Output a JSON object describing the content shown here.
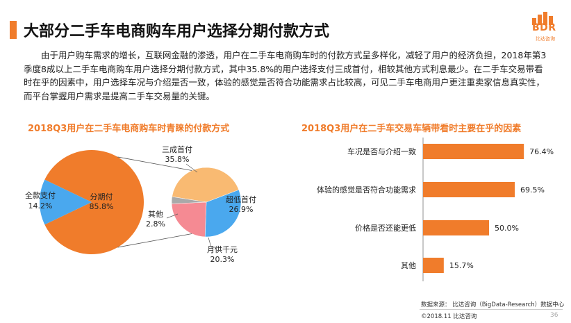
{
  "header": {
    "title": "大部分二手车电商购车用户选择分期付款方式",
    "logo_text": "BDR",
    "logo_sub": "比达咨询"
  },
  "paragraph": "由于用户购车需求的增长，互联网金融的渗透，用户在二手车电商购车时的付款方式呈多样化，减轻了用户的经济负担，2018年第3季度8成以上二手车电商购车用户选择分期付款方式，其中35.8%的用户选择支付三成首付，相较其他方式利息最少。在二手车交易带看时在乎的因素中，用户选择车况与介绍是否一致，体验的感觉是否符合功能需求占比较高，可见二手车电商用户更注重卖家信息真实性，而平台掌握用户需求是提高二手车交易量的关键。",
  "footer": {
    "source": "数据来源： 比达咨询（BigData-Research）数据中心",
    "copyright": "©2018.11  比达咨询",
    "page": "36"
  },
  "colors": {
    "accent": "#f07c2b",
    "blue": "#4aa8ee",
    "pink": "#f58a93",
    "gray": "#a9a9a9",
    "peach": "#f9ba72"
  },
  "chart_data": [
    {
      "type": "pie",
      "title": "2018Q3用户在二手车电商购车时青睐的付款方式",
      "main": {
        "slices": [
          {
            "label": "分期付",
            "value": 85.8,
            "display": "85.8%",
            "color": "#f07c2b"
          },
          {
            "label": "全款支付",
            "value": 14.2,
            "display": "14.2%",
            "color": "#4aa8ee"
          }
        ]
      },
      "breakdown": {
        "of": "分期付",
        "slices": [
          {
            "label": "三成首付",
            "value": 35.8,
            "display": "35.8%",
            "color": "#f9ba72"
          },
          {
            "label": "超低首付",
            "value": 26.9,
            "display": "26.9%",
            "color": "#4aa8ee"
          },
          {
            "label": "月供千元",
            "value": 20.3,
            "display": "20.3%",
            "color": "#f58a93"
          },
          {
            "label": "其他",
            "value": 2.8,
            "display": "2.8%",
            "color": "#a9a9a9"
          }
        ]
      }
    },
    {
      "type": "bar",
      "orientation": "horizontal",
      "title": "2018Q3用户在二手车交易车辆带看时主要在乎的因素",
      "categories": [
        "车况是否与介绍一致",
        "体验的感觉是否符合功能需求",
        "价格是否还能更低",
        "其他"
      ],
      "values": [
        76.4,
        69.5,
        50.0,
        15.7
      ],
      "labels": [
        "76.4%",
        "69.5%",
        "50.0%",
        "15.7%"
      ],
      "xlim": [
        0,
        100
      ],
      "color": "#f07c2b"
    }
  ]
}
